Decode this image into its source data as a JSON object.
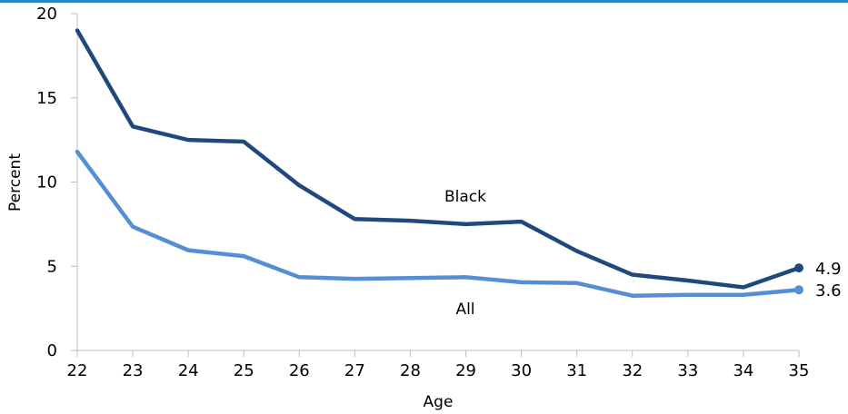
{
  "chart_data": {
    "type": "line",
    "title": "",
    "xlabel": "Age",
    "ylabel": "Percent",
    "x": [
      22,
      23,
      24,
      25,
      26,
      27,
      28,
      29,
      30,
      31,
      32,
      33,
      34,
      35
    ],
    "xlim": [
      22,
      35
    ],
    "ylim": [
      0,
      20
    ],
    "yticks": [
      0,
      5,
      10,
      15,
      20
    ],
    "grid": false,
    "legend": "none",
    "series": [
      {
        "name": "Black",
        "color": "#1f497d",
        "values": [
          19.0,
          13.3,
          12.5,
          12.4,
          9.8,
          7.8,
          7.7,
          7.5,
          7.65,
          5.9,
          4.5,
          4.15,
          3.75,
          4.9
        ],
        "end_label": "4.9"
      },
      {
        "name": "All",
        "color": "#558ed5",
        "values": [
          11.8,
          7.35,
          5.95,
          5.6,
          4.35,
          4.25,
          4.3,
          4.35,
          4.05,
          4.0,
          3.25,
          3.3,
          3.3,
          3.6
        ],
        "end_label": "3.6"
      }
    ]
  }
}
